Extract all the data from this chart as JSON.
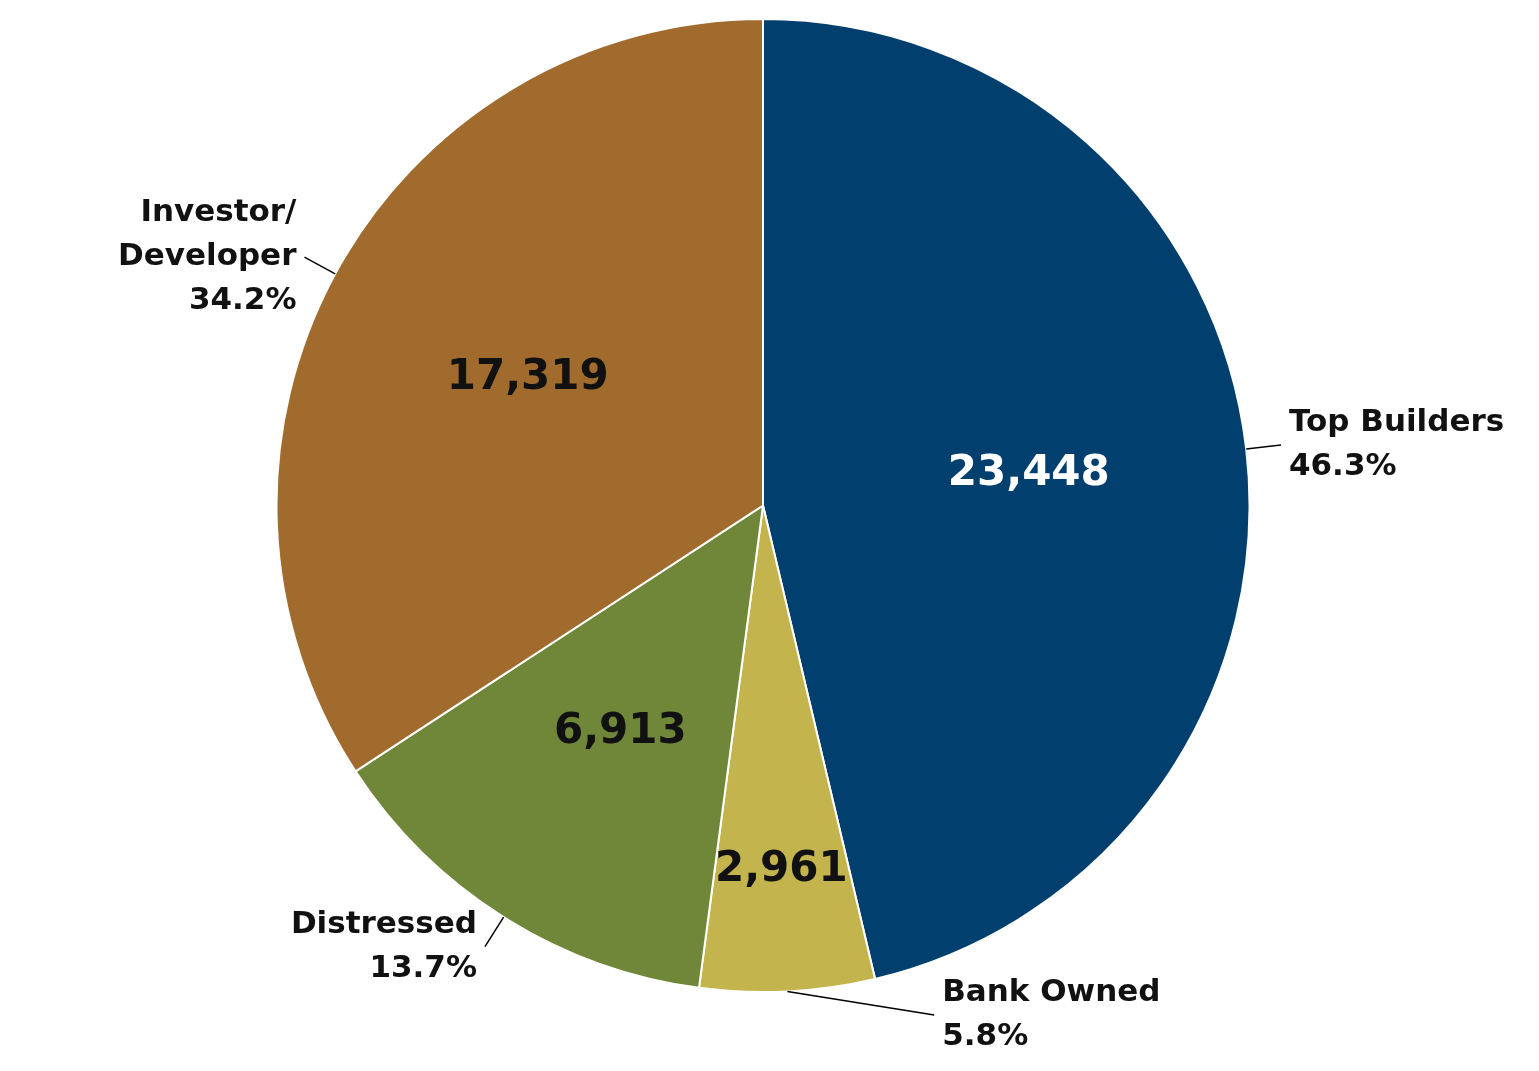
{
  "chart_data": {
    "type": "pie",
    "categories": [
      "Top Builders",
      "Bank Owned",
      "Distressed",
      "Investor/Developer"
    ],
    "values": [
      46.3,
      5.8,
      13.7,
      34.2
    ],
    "colors": [
      "#003f6e",
      "#c4b44e",
      "#70873a",
      "#a26b2e"
    ],
    "value_labels": [
      "46.3%",
      "5.8%",
      "13.7%",
      "34.2%"
    ],
    "annotations": [
      {
        "text": "23,448",
        "x": "Top Builders"
      },
      {
        "text": "2,961",
        "x": "Bank Owned"
      },
      {
        "text": "6,913",
        "x": "Distressed"
      },
      {
        "text": "17,319",
        "x": "Investor/Developer"
      }
    ],
    "legend": false
  }
}
